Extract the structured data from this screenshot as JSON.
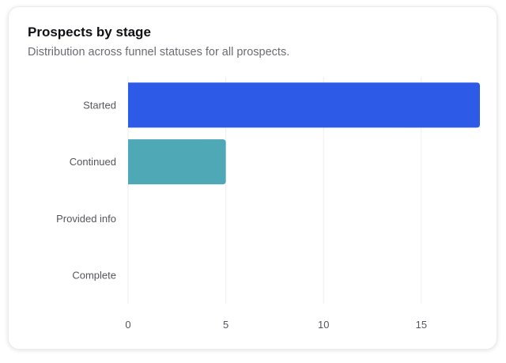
{
  "card": {
    "title": "Prospects by stage",
    "subtitle": "Distribution across funnel statuses for all prospects."
  },
  "chart_data": {
    "type": "bar",
    "orientation": "horizontal",
    "title": "Prospects by stage",
    "subtitle": "Distribution across funnel statuses for all prospects.",
    "categories": [
      "Started",
      "Continued",
      "Provided info",
      "Complete"
    ],
    "values": [
      18,
      5,
      0,
      0
    ],
    "colors": [
      "#2d5ae6",
      "#4ea8b5",
      "#4ea8b5",
      "#4ea8b5"
    ],
    "xlim": [
      0,
      18
    ],
    "xticks": [
      0,
      5,
      10,
      15
    ],
    "xlabel": "",
    "ylabel": "",
    "grid": "vertical",
    "legend": "none"
  },
  "colors": {
    "grid": "#eeeeef",
    "tick_text": "#55555d"
  }
}
